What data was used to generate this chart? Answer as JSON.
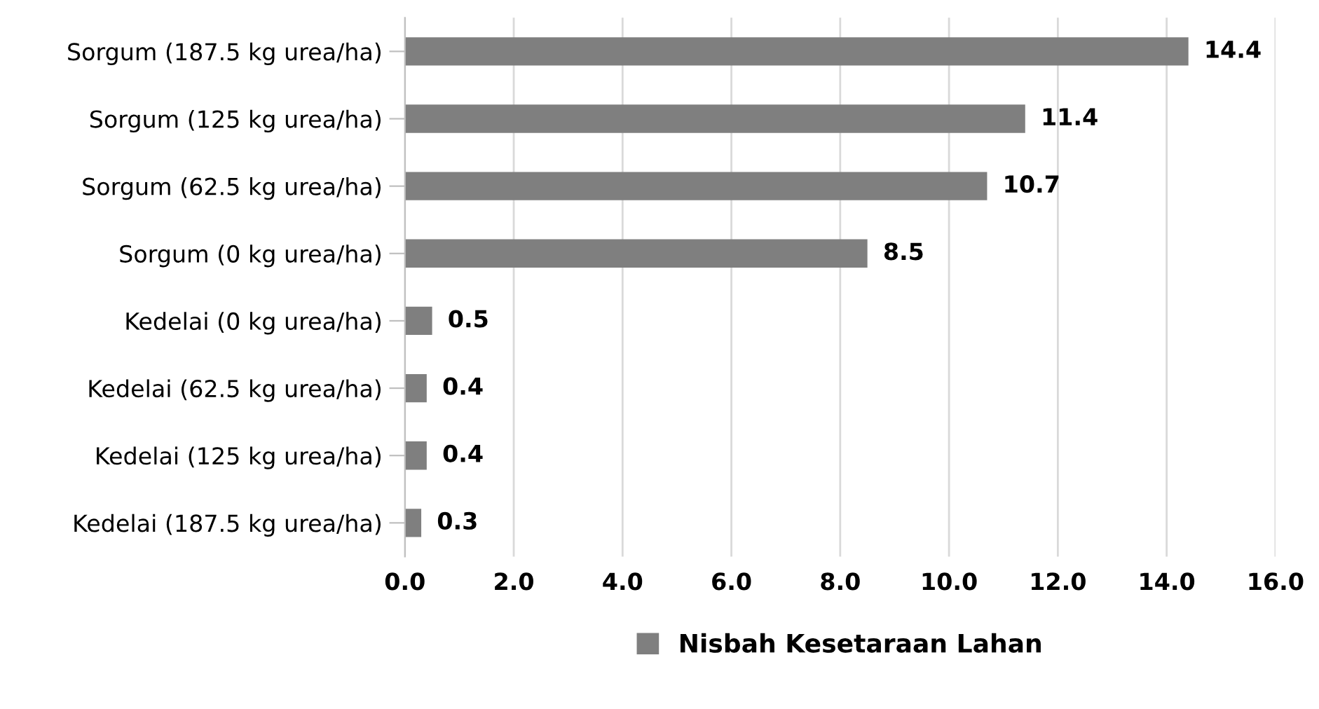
{
  "chart_data": {
    "type": "bar",
    "orientation": "horizontal",
    "categories": [
      "Sorgum (187.5 kg urea/ha)",
      "Sorgum (125 kg urea/ha)",
      "Sorgum (62.5 kg urea/ha)",
      "Sorgum (0 kg urea/ha)",
      "Kedelai (0 kg urea/ha)",
      "Kedelai (62.5 kg urea/ha)",
      "Kedelai (125 kg urea/ha)",
      "Kedelai (187.5 kg urea/ha)"
    ],
    "series": [
      {
        "name": "Nisbah Kesetaraan Lahan",
        "color": "#7f7f7f",
        "values": [
          14.4,
          11.4,
          10.7,
          8.5,
          0.5,
          0.4,
          0.4,
          0.3
        ]
      }
    ],
    "data_labels": true,
    "xlim": [
      0,
      16
    ],
    "xticks": [
      {
        "value": 0,
        "label": "0.0"
      },
      {
        "value": 2,
        "label": "2.0"
      },
      {
        "value": 4,
        "label": "4.0"
      },
      {
        "value": 6,
        "label": "6.0"
      },
      {
        "value": 8,
        "label": "8.0"
      },
      {
        "value": 10,
        "label": "10.0"
      },
      {
        "value": 12,
        "label": "12.0"
      },
      {
        "value": 14,
        "label": "14.0"
      },
      {
        "value": 16,
        "label": "16.0"
      }
    ],
    "grid": "x",
    "legend": "bottom"
  }
}
